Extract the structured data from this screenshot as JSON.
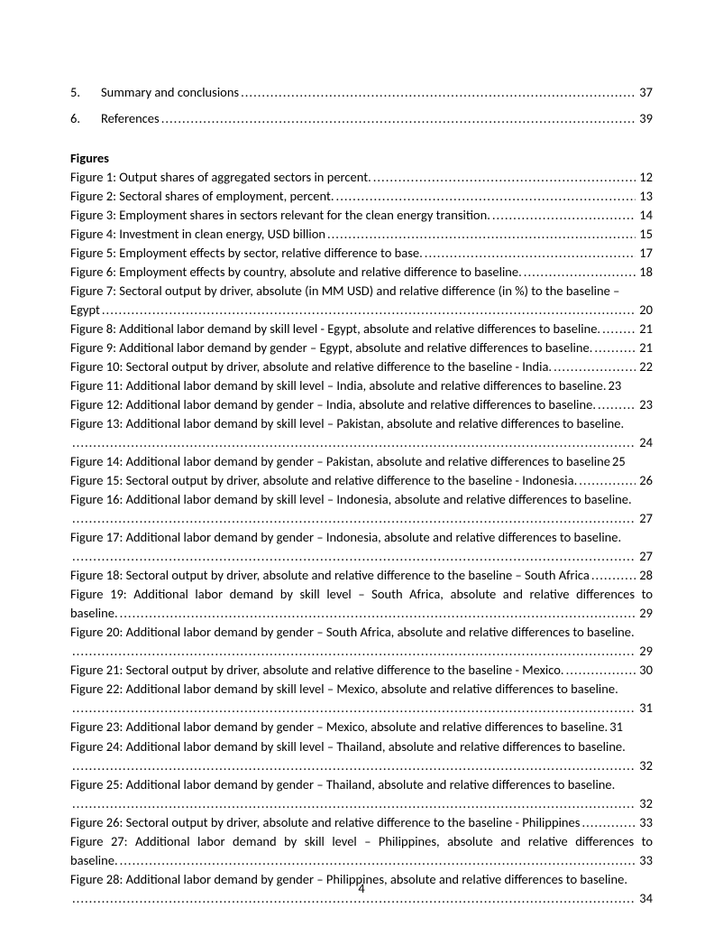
{
  "text_color": "#000000",
  "background_color": "#ffffff",
  "font_family": "Calibri",
  "base_fontsize": 14.5,
  "page_number": "4",
  "toc": [
    {
      "num": "5.",
      "label": "Summary and conclusions",
      "page": "37"
    },
    {
      "num": "6.",
      "label": "References",
      "page": "39"
    }
  ],
  "figures_heading": "Figures",
  "figures": [
    {
      "text": "Figure 1: Output shares of aggregated sectors in percent.",
      "page": "12",
      "wrap": false
    },
    {
      "text": "Figure 2: Sectoral shares of employment, percent.",
      "page": "13",
      "wrap": false
    },
    {
      "text": "Figure 3: Employment shares in sectors relevant for the clean energy transition.",
      "page": "14",
      "wrap": false
    },
    {
      "text": "Figure 4: Investment in clean energy, USD billion",
      "page": "15",
      "wrap": false
    },
    {
      "text": "Figure 5: Employment effects by sector, relative difference to base.",
      "page": "17",
      "wrap": false
    },
    {
      "text": "Figure 6: Employment effects by country, absolute and relative difference to baseline.",
      "page": "18",
      "wrap": false
    },
    {
      "text_line1": "Figure 7: Sectoral output by driver, absolute (in MM USD) and relative difference (in %) to the baseline –",
      "text_line2": "Egypt",
      "page": "20",
      "wrap": true
    },
    {
      "text": "Figure 8: Additional labor demand by skill level - Egypt, absolute and relative differences to baseline.",
      "page": "21",
      "wrap": false,
      "tight": true
    },
    {
      "text": "Figure 9: Additional labor demand by gender – Egypt, absolute and relative differences to baseline.",
      "page": "21",
      "wrap": false,
      "tight": true
    },
    {
      "text": "Figure 10: Sectoral output by driver, absolute and relative difference to the baseline - India.",
      "page": "22",
      "wrap": false
    },
    {
      "text": "Figure 11: Additional labor demand by skill level – India, absolute and relative differences to baseline.",
      "page": "23",
      "wrap": false,
      "nolead": true
    },
    {
      "text": "Figure 12: Additional labor demand by gender – India, absolute and relative differences to baseline.",
      "page": "23",
      "wrap": false,
      "tight": true
    },
    {
      "text_line1": "Figure 13: Additional labor demand by skill level – Pakistan, absolute and relative differences to baseline.",
      "text_line2": "",
      "page": "24",
      "wrap": true
    },
    {
      "text": "Figure 14: Additional labor demand by gender – Pakistan, absolute and relative differences to baseline",
      "page": "25",
      "wrap": false,
      "nolead": true
    },
    {
      "text": "Figure 15: Sectoral output by driver, absolute and relative difference to the baseline - Indonesia.",
      "page": "26",
      "wrap": false
    },
    {
      "text_line1": "Figure 16: Additional labor demand by skill level – Indonesia, absolute and relative differences to baseline.",
      "text_line2": "",
      "page": "27",
      "wrap": true
    },
    {
      "text_line1": "Figure 17: Additional labor demand by gender – Indonesia, absolute and relative differences to baseline.",
      "text_line2": "",
      "page": "27",
      "wrap": true
    },
    {
      "text": "Figure 18: Sectoral output by driver, absolute and relative difference to the baseline – South Africa",
      "page": "28",
      "wrap": false,
      "tight": true
    },
    {
      "text_line1": "Figure 19: Additional labor demand by skill level – South Africa, absolute and relative differences to",
      "text_line2": "baseline.",
      "page": "29",
      "wrap": true,
      "justify1": true
    },
    {
      "text_line1": "Figure 20: Additional labor demand by gender – South Africa, absolute and relative differences to baseline.",
      "text_line2": "",
      "page": "29",
      "wrap": true
    },
    {
      "text": "Figure 21: Sectoral output by driver, absolute and relative difference to the baseline - Mexico.",
      "page": "30",
      "wrap": false
    },
    {
      "text_line1": "Figure 22: Additional labor demand by skill level – Mexico, absolute and relative differences to baseline.",
      "text_line2": "",
      "page": "31",
      "wrap": true
    },
    {
      "text": "Figure 23: Additional labor demand by gender – Mexico, absolute and relative differences to baseline.",
      "page": "31",
      "wrap": false,
      "nolead": true
    },
    {
      "text_line1": "Figure 24: Additional labor demand by skill level – Thailand, absolute and relative differences to baseline.",
      "text_line2": "",
      "page": "32",
      "wrap": true
    },
    {
      "text_line1": "Figure 25: Additional labor demand by gender – Thailand, absolute and relative differences to baseline.",
      "text_line2": "",
      "page": "32",
      "wrap": true
    },
    {
      "text": "Figure 26: Sectoral output by driver, absolute and relative difference to the baseline - Philippines",
      "page": "33",
      "wrap": false
    },
    {
      "text_line1": "Figure 27: Additional labor demand by skill level – Philippines, absolute and relative differences to",
      "text_line2": "baseline.",
      "page": "33",
      "wrap": true,
      "justify1": true
    },
    {
      "text_line1": "Figure 28: Additional labor demand by gender – Philippines, absolute and relative differences to baseline.",
      "text_line2": "",
      "page": "34",
      "wrap": true
    }
  ]
}
